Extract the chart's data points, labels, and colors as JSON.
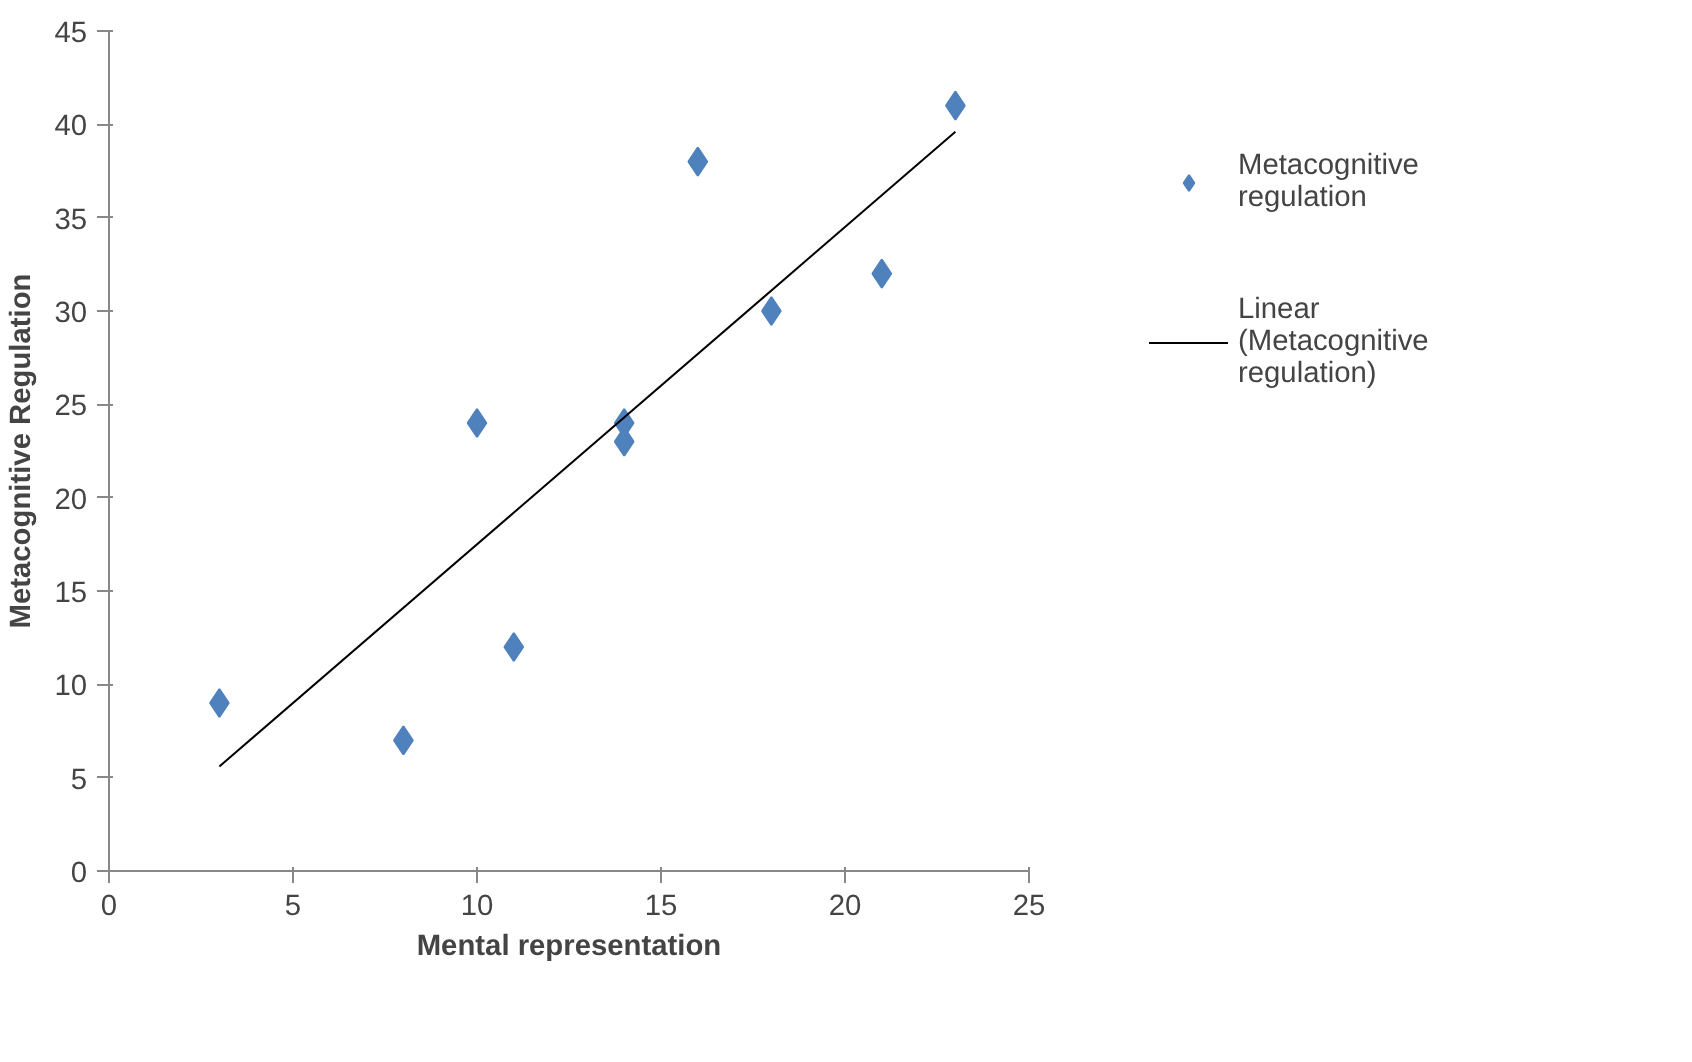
{
  "chart_data": {
    "type": "scatter",
    "xlabel": "Mental representation",
    "ylabel": "Metacognitive Regulation",
    "xlim": [
      0,
      25
    ],
    "xticks": [
      0,
      5,
      10,
      15,
      20,
      25
    ],
    "ylim": [
      0,
      45
    ],
    "yticks": [
      0,
      5,
      10,
      15,
      20,
      25,
      30,
      35,
      40,
      45
    ],
    "grid": false,
    "legend": "right",
    "marker": "diamond",
    "series": [
      {
        "name": "Metacognitive regulation",
        "color": "#4f81bd",
        "x": [
          3,
          8,
          10,
          11,
          14,
          14,
          16,
          18,
          21,
          23
        ],
        "values": [
          9,
          7,
          24,
          12,
          24,
          23,
          38,
          30,
          32,
          41
        ]
      },
      {
        "name": "Linear (Metacognitive regulation)",
        "type": "line",
        "color": "#000000",
        "line_style": "solid",
        "marker": "none",
        "x": [
          3,
          23
        ],
        "values": [
          5.6,
          39.6
        ]
      }
    ]
  }
}
